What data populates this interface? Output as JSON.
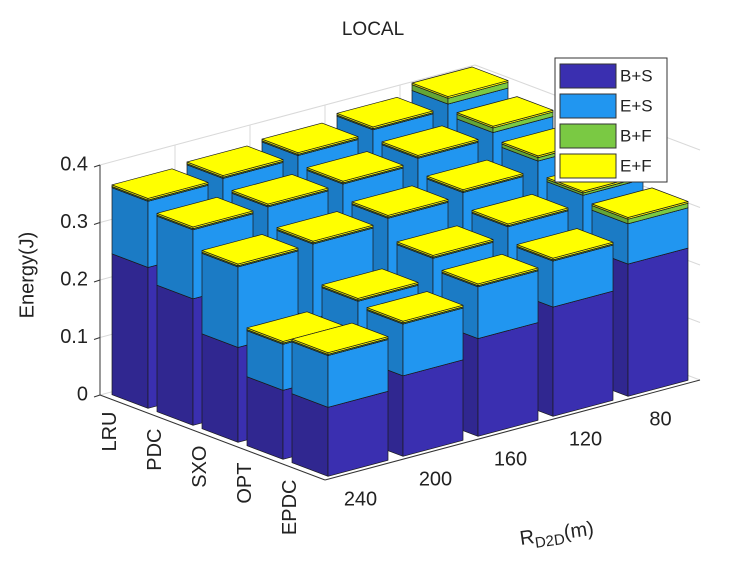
{
  "chart_data": {
    "type": "bar3",
    "title": "LOCAL",
    "ylabel": "Energy(J)",
    "xlabel": {
      "base": "R",
      "sub": "D2D",
      "unit": "(m)"
    },
    "categories": [
      "LRU",
      "PDC",
      "SXO",
      "OPT",
      "EPDC"
    ],
    "depth_categories": [
      240,
      200,
      160,
      120,
      80
    ],
    "ylim": [
      0,
      0.4
    ],
    "yticks": [
      0,
      0.1,
      0.2,
      0.3,
      0.4
    ],
    "grid": true,
    "legend": "northeast",
    "series": [
      {
        "name": "B+S",
        "color": "#3a2fb0",
        "values": [
          [
            0.245,
            0.25,
            0.26,
            0.27,
            0.28
          ],
          [
            0.22,
            0.23,
            0.24,
            0.25,
            0.26
          ],
          [
            0.165,
            0.18,
            0.2,
            0.22,
            0.24
          ],
          [
            0.12,
            0.15,
            0.17,
            0.2,
            0.22
          ],
          [
            0.12,
            0.14,
            0.17,
            0.19,
            0.23
          ]
        ]
      },
      {
        "name": "E+S",
        "color": "#2196f0",
        "values": [
          [
            0.115,
            0.115,
            0.11,
            0.11,
            0.11
          ],
          [
            0.12,
            0.115,
            0.11,
            0.11,
            0.11
          ],
          [
            0.14,
            0.13,
            0.12,
            0.11,
            0.11
          ],
          [
            0.08,
            0.09,
            0.11,
            0.1,
            0.1
          ],
          [
            0.09,
            0.09,
            0.09,
            0.08,
            0.07
          ]
        ]
      },
      {
        "name": "B+F",
        "color": "#7ac943",
        "values": [
          [
            0.002,
            0.002,
            0.002,
            0.002,
            0.01
          ],
          [
            0.002,
            0.002,
            0.002,
            0.002,
            0.008
          ],
          [
            0.002,
            0.002,
            0.002,
            0.002,
            0.006
          ],
          [
            0.002,
            0.002,
            0.002,
            0.002,
            0.004
          ],
          [
            0.002,
            0.002,
            0.002,
            0.002,
            0.008
          ]
        ]
      },
      {
        "name": "E+F",
        "color": "#ffff00",
        "values": [
          [
            0.003,
            0.003,
            0.003,
            0.003,
            0.003
          ],
          [
            0.003,
            0.003,
            0.003,
            0.003,
            0.003
          ],
          [
            0.003,
            0.003,
            0.003,
            0.003,
            0.003
          ],
          [
            0.003,
            0.003,
            0.003,
            0.003,
            0.003
          ],
          [
            0.003,
            0.003,
            0.003,
            0.003,
            0.003
          ]
        ]
      }
    ]
  }
}
